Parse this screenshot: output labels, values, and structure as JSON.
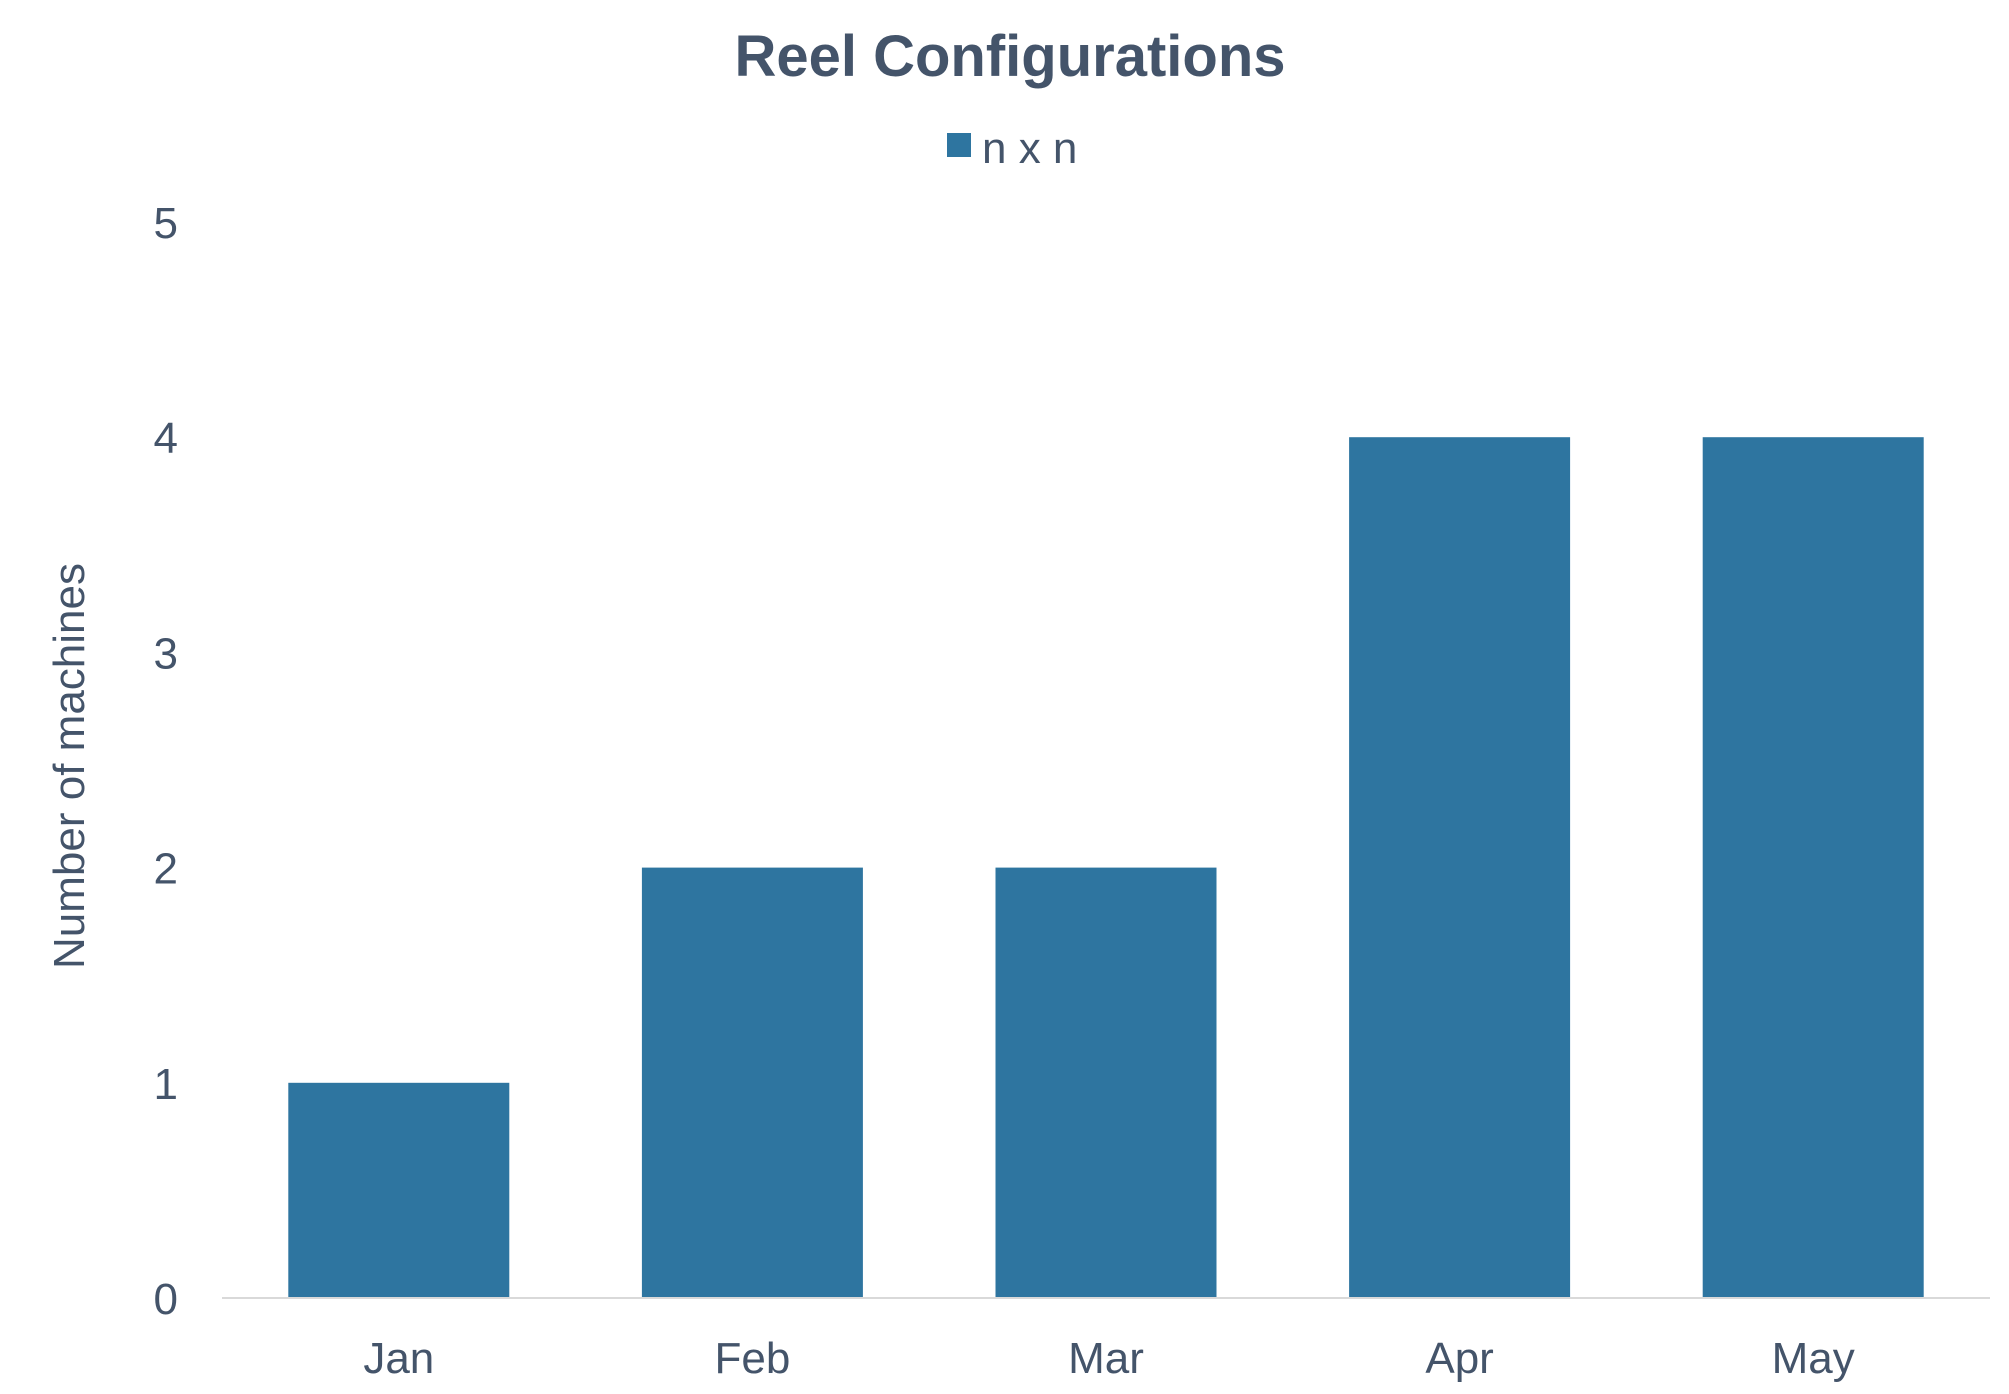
{
  "chart_data": {
    "type": "bar",
    "title": "Reel Configurations",
    "xlabel": "",
    "ylabel": "Number of machines",
    "categories": [
      "Jan",
      "Feb",
      "Mar",
      "Apr",
      "May"
    ],
    "series": [
      {
        "name": "n x n",
        "values": [
          1,
          2,
          2,
          4,
          4
        ],
        "color": "#2e75a0"
      }
    ],
    "ylim": [
      0,
      5
    ],
    "yticks": [
      0,
      1,
      2,
      3,
      4,
      5
    ],
    "grid": false,
    "legend": "top-center",
    "text_color": "#44546a"
  }
}
